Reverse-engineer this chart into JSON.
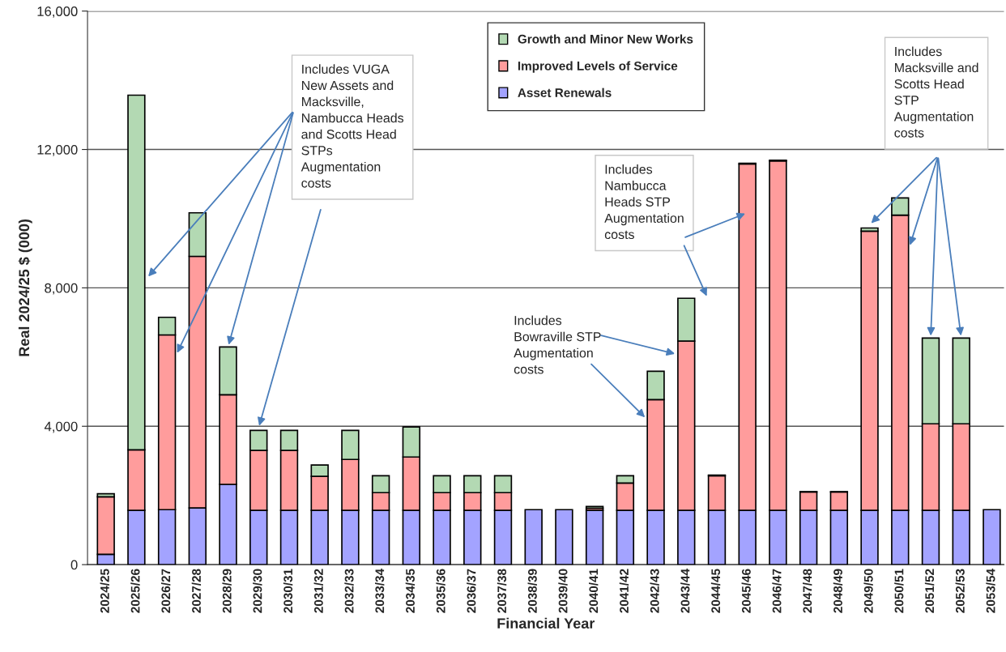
{
  "chart_data": {
    "type": "bar",
    "stacked": true,
    "xlabel": "Financial Year",
    "ylabel": "Real 2024/25 $ (000)",
    "categories": [
      "2024/25",
      "2025/26",
      "2026/27",
      "2027/28",
      "2028/29",
      "2029/30",
      "2030/31",
      "2031/32",
      "2032/33",
      "2033/34",
      "2034/35",
      "2035/36",
      "2036/37",
      "2037/38",
      "2038/39",
      "2039/40",
      "2040/41",
      "2041/42",
      "2042/43",
      "2043/44",
      "2044/45",
      "2045/46",
      "2046/47",
      "2047/48",
      "2048/49",
      "2049/50",
      "2050/51",
      "2051/52",
      "2052/53",
      "2053/54"
    ],
    "series": [
      {
        "name": "Asset Renewals",
        "color": "#a3a3ff",
        "values": [
          300,
          1570,
          1590,
          1640,
          2320,
          1570,
          1570,
          1570,
          1570,
          1570,
          1570,
          1570,
          1570,
          1570,
          1590,
          1590,
          1570,
          1570,
          1570,
          1570,
          1570,
          1570,
          1570,
          1570,
          1570,
          1570,
          1570,
          1570,
          1570,
          1590
        ]
      },
      {
        "name": "Improved Levels of Service",
        "color": "#ff9c9c",
        "values": [
          1660,
          1750,
          5050,
          7270,
          2590,
          1730,
          1730,
          980,
          1470,
          510,
          1540,
          510,
          510,
          510,
          0,
          0,
          60,
          790,
          3200,
          4890,
          1000,
          10010,
          10100,
          530,
          530,
          8070,
          8530,
          2500,
          2500,
          0
        ]
      },
      {
        "name": "Growth and Minor New Works",
        "color": "#b3d9b3",
        "values": [
          90,
          10250,
          510,
          1260,
          1380,
          580,
          580,
          330,
          840,
          490,
          870,
          490,
          490,
          490,
          0,
          0,
          50,
          210,
          820,
          1240,
          20,
          20,
          20,
          10,
          10,
          90,
          500,
          2480,
          2480,
          0
        ]
      }
    ],
    "ylim": [
      0,
      16000
    ],
    "yticks": [
      0,
      {
        "value": 4000,
        "label": "4,000"
      },
      {
        "value": 8000,
        "label": "8,000"
      },
      {
        "value": 12000,
        "label": "12,000"
      },
      {
        "value": 16000,
        "label": "16,000"
      }
    ],
    "grid": "y",
    "legend": "top",
    "annotations": [
      {
        "text": "Includes VUGA\nNew Assets and\nMacksville,\nNambucca Heads\nand Scotts Head\nSTPs\nAugmentation\ncosts",
        "x": "2028/29",
        "y": 6290
      },
      "Includes\nNambucca\nHeads STP\nAugmentation\ncosts",
      "Includes\nBowraville STP\nAugmentation\ncosts",
      "Includes\nMacksville and\nScotts Head\nSTP\nAugmentation\ncosts"
    ]
  }
}
